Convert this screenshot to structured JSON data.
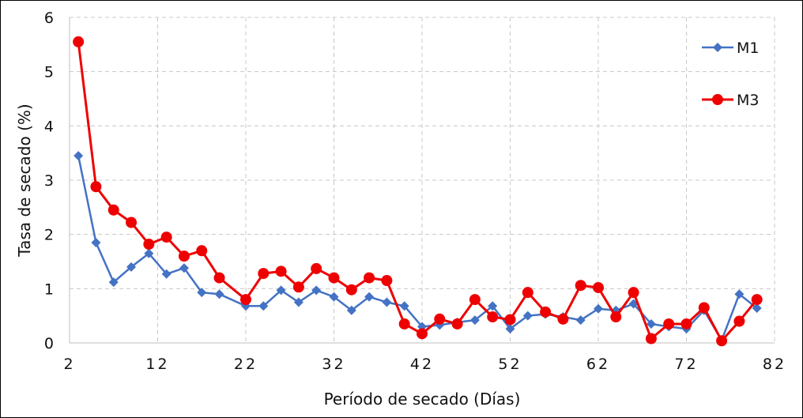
{
  "chart_data": {
    "type": "line",
    "title": "",
    "xlabel": "Período de secado (Días)",
    "ylabel": "Tasa de secado (%)",
    "xlim": [
      2,
      82
    ],
    "ylim": [
      0,
      6
    ],
    "xticks": [
      2,
      12,
      22,
      32,
      42,
      52,
      62,
      72,
      82
    ],
    "xtick_labels": [
      "2",
      "12",
      "22",
      "32",
      "42",
      "52",
      "62",
      "72",
      "82"
    ],
    "yticks": [
      0,
      1,
      2,
      3,
      4,
      5,
      6
    ],
    "ytick_labels": [
      "0",
      "1",
      "2",
      "3",
      "4",
      "5",
      "6"
    ],
    "grid": true,
    "legend_position": "right",
    "colors": {
      "M1": "#4472C4",
      "M3": "#EE0000"
    },
    "series": [
      {
        "name": "M1",
        "marker": "diamond",
        "x": [
          3,
          5,
          7,
          9,
          11,
          13,
          15,
          17,
          19,
          22,
          24,
          26,
          28,
          30,
          32,
          34,
          36,
          38,
          40,
          42,
          44,
          46,
          48,
          50,
          52,
          54,
          56,
          58,
          60,
          62,
          64,
          66,
          68,
          70,
          72,
          74,
          76,
          78,
          80
        ],
        "y": [
          3.45,
          1.85,
          1.12,
          1.4,
          1.65,
          1.27,
          1.38,
          0.93,
          0.9,
          0.68,
          0.68,
          0.97,
          0.75,
          0.97,
          0.85,
          0.6,
          0.85,
          0.75,
          0.68,
          0.3,
          0.33,
          0.38,
          0.42,
          0.68,
          0.26,
          0.5,
          0.53,
          0.48,
          0.42,
          0.63,
          0.6,
          0.72,
          0.35,
          0.3,
          0.26,
          0.6,
          0.05,
          0.9,
          0.64
        ]
      },
      {
        "name": "M3",
        "marker": "circle",
        "x": [
          3,
          5,
          7,
          9,
          11,
          13,
          15,
          17,
          19,
          22,
          24,
          26,
          28,
          30,
          32,
          34,
          36,
          38,
          40,
          42,
          44,
          46,
          48,
          50,
          52,
          54,
          56,
          58,
          60,
          62,
          64,
          66,
          68,
          70,
          72,
          74,
          76,
          78,
          80
        ],
        "y": [
          5.55,
          2.88,
          2.45,
          2.22,
          1.82,
          1.95,
          1.6,
          1.7,
          1.2,
          0.8,
          1.28,
          1.32,
          1.03,
          1.37,
          1.2,
          0.98,
          1.2,
          1.15,
          0.35,
          0.17,
          0.44,
          0.35,
          0.8,
          0.48,
          0.43,
          0.93,
          0.57,
          0.44,
          1.06,
          1.02,
          0.48,
          0.93,
          0.08,
          0.35,
          0.35,
          0.65,
          0.04,
          0.4,
          0.8
        ]
      }
    ]
  }
}
